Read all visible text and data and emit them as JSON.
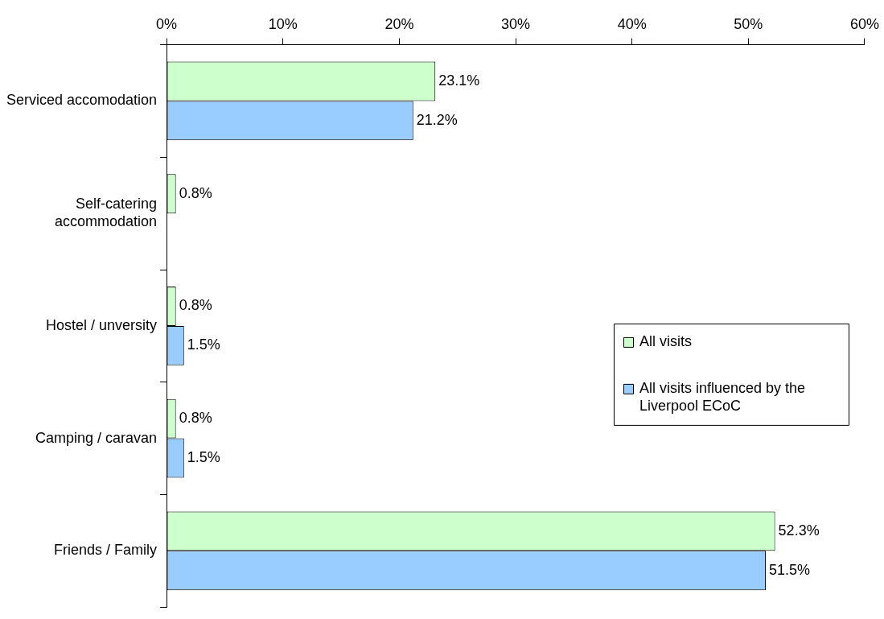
{
  "chart_data": {
    "type": "bar",
    "orientation": "horizontal",
    "categories": [
      "Serviced accomodation",
      "Self-catering accommodation",
      "Hostel / unversity",
      "Camping / caravan",
      "Friends / Family"
    ],
    "series": [
      {
        "name": "All visits",
        "color": "#ccffcc",
        "values": [
          23.1,
          0.8,
          0.8,
          0.8,
          52.3
        ],
        "value_labels": [
          "23.1%",
          "0.8%",
          "0.8%",
          "0.8%",
          "52.3%"
        ]
      },
      {
        "name": "All visits influenced by the Liverpool ECoC",
        "color": "#99ccff",
        "values": [
          21.2,
          null,
          1.5,
          1.5,
          51.5
        ],
        "value_labels": [
          "21.2%",
          null,
          "1.5%",
          "1.5%",
          "51.5%"
        ]
      }
    ],
    "xlim": [
      0,
      60
    ],
    "xticks": [
      {
        "value": 0,
        "label": "0%"
      },
      {
        "value": 10,
        "label": "10%"
      },
      {
        "value": 20,
        "label": "20%"
      },
      {
        "value": 30,
        "label": "30%"
      },
      {
        "value": 40,
        "label": "40%"
      },
      {
        "value": 50,
        "label": "50%"
      },
      {
        "value": 60,
        "label": "60%"
      }
    ],
    "grid": false,
    "legend": "right"
  }
}
